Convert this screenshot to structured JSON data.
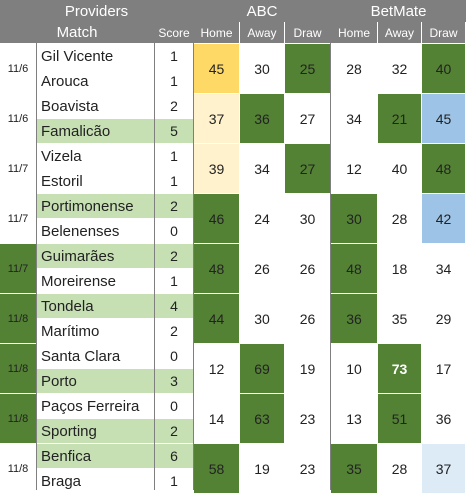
{
  "headers": {
    "providers": "Providers",
    "abc": "ABC",
    "betmate": "BetMate",
    "match": "Match",
    "score": "Score",
    "home": "Home",
    "away": "Away",
    "draw": "Draw"
  },
  "colors": {
    "header": "#7f7f7f",
    "winner_team_bg": "#c6e0b4",
    "dark_green": "#548235",
    "gold": "#ffd966",
    "cream": "#fff2cc",
    "light_blue": "#9dc3e6",
    "pale_blue": "#ddebf7"
  },
  "matches": [
    {
      "date": "11/6",
      "home": {
        "team": "Gil Vicente",
        "score": "1",
        "winner": false
      },
      "away": {
        "team": "Arouca",
        "score": "1",
        "winner": false
      },
      "abc": [
        {
          "v": "45",
          "style": "gold"
        },
        {
          "v": "30",
          "style": "none"
        },
        {
          "v": "25",
          "style": "dark"
        }
      ],
      "betmate": [
        {
          "v": "28",
          "style": "none"
        },
        {
          "v": "32",
          "style": "none"
        },
        {
          "v": "40",
          "style": "dark"
        }
      ]
    },
    {
      "date": "11/6",
      "home": {
        "team": "Boavista",
        "score": "2",
        "winner": false
      },
      "away": {
        "team": "Famalicão",
        "score": "5",
        "winner": true
      },
      "abc": [
        {
          "v": "37",
          "style": "cream"
        },
        {
          "v": "36",
          "style": "dark"
        },
        {
          "v": "27",
          "style": "none"
        }
      ],
      "betmate": [
        {
          "v": "34",
          "style": "none"
        },
        {
          "v": "21",
          "style": "dark"
        },
        {
          "v": "45",
          "style": "lightblue"
        }
      ]
    },
    {
      "date": "11/7",
      "home": {
        "team": "Vizela",
        "score": "1",
        "winner": false
      },
      "away": {
        "team": "Estoril",
        "score": "1",
        "winner": false
      },
      "abc": [
        {
          "v": "39",
          "style": "cream"
        },
        {
          "v": "34",
          "style": "none"
        },
        {
          "v": "27",
          "style": "dark"
        }
      ],
      "betmate": [
        {
          "v": "12",
          "style": "none"
        },
        {
          "v": "40",
          "style": "none"
        },
        {
          "v": "48",
          "style": "dark"
        }
      ]
    },
    {
      "date": "11/7",
      "home": {
        "team": "Portimonense",
        "score": "2",
        "winner": true
      },
      "away": {
        "team": "Belenenses",
        "score": "0",
        "winner": false
      },
      "abc": [
        {
          "v": "46",
          "style": "dark"
        },
        {
          "v": "24",
          "style": "none"
        },
        {
          "v": "30",
          "style": "none"
        }
      ],
      "betmate": [
        {
          "v": "30",
          "style": "dark"
        },
        {
          "v": "28",
          "style": "none"
        },
        {
          "v": "42",
          "style": "lightblue"
        }
      ]
    },
    {
      "date": "11/7",
      "datedark": true,
      "home": {
        "team": "Guimarães",
        "score": "2",
        "winner": true
      },
      "away": {
        "team": "Moreirense",
        "score": "1",
        "winner": false
      },
      "abc": [
        {
          "v": "48",
          "style": "dark"
        },
        {
          "v": "26",
          "style": "none"
        },
        {
          "v": "26",
          "style": "none"
        }
      ],
      "betmate": [
        {
          "v": "48",
          "style": "dark"
        },
        {
          "v": "18",
          "style": "none"
        },
        {
          "v": "34",
          "style": "none"
        }
      ]
    },
    {
      "date": "11/8",
      "datedark": true,
      "home": {
        "team": "Tondela",
        "score": "4",
        "winner": true
      },
      "away": {
        "team": "Marítimo",
        "score": "2",
        "winner": false
      },
      "abc": [
        {
          "v": "44",
          "style": "dark"
        },
        {
          "v": "30",
          "style": "none"
        },
        {
          "v": "26",
          "style": "none"
        }
      ],
      "betmate": [
        {
          "v": "36",
          "style": "dark"
        },
        {
          "v": "35",
          "style": "none"
        },
        {
          "v": "29",
          "style": "none"
        }
      ]
    },
    {
      "date": "11/8",
      "datedark": true,
      "home": {
        "team": "Santa Clara",
        "score": "0",
        "winner": false
      },
      "away": {
        "team": "Porto",
        "score": "3",
        "winner": true
      },
      "abc": [
        {
          "v": "12",
          "style": "none"
        },
        {
          "v": "69",
          "style": "dark"
        },
        {
          "v": "19",
          "style": "none"
        }
      ],
      "betmate": [
        {
          "v": "10",
          "style": "none"
        },
        {
          "v": "73",
          "style": "darkbold"
        },
        {
          "v": "17",
          "style": "none"
        }
      ]
    },
    {
      "date": "11/8",
      "datedark": true,
      "home": {
        "team": "Paços Ferreira",
        "score": "0",
        "winner": false
      },
      "away": {
        "team": "Sporting",
        "score": "2",
        "winner": true
      },
      "abc": [
        {
          "v": "14",
          "style": "none"
        },
        {
          "v": "63",
          "style": "dark"
        },
        {
          "v": "23",
          "style": "none"
        }
      ],
      "betmate": [
        {
          "v": "13",
          "style": "none"
        },
        {
          "v": "51",
          "style": "dark"
        },
        {
          "v": "36",
          "style": "none"
        }
      ]
    },
    {
      "date": "11/8",
      "home": {
        "team": "Benfica",
        "score": "6",
        "winner": true
      },
      "away": {
        "team": "Braga",
        "score": "1",
        "winner": false
      },
      "abc": [
        {
          "v": "58",
          "style": "dark"
        },
        {
          "v": "19",
          "style": "none"
        },
        {
          "v": "23",
          "style": "none"
        }
      ],
      "betmate": [
        {
          "v": "35",
          "style": "dark"
        },
        {
          "v": "28",
          "style": "none"
        },
        {
          "v": "37",
          "style": "paleblue"
        }
      ]
    }
  ]
}
